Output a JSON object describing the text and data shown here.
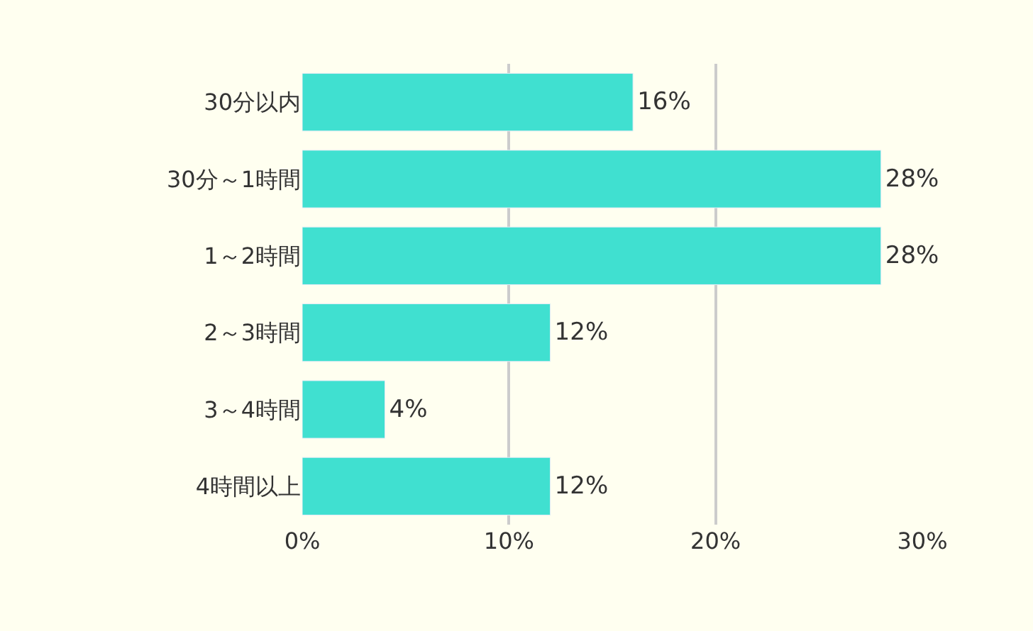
{
  "chart_data": {
    "type": "bar",
    "orientation": "horizontal",
    "categories": [
      "30分以内",
      "30分～1時間",
      "1～2時間",
      "2～3時間",
      "3～4時間",
      "4時間以上"
    ],
    "values": [
      16,
      28,
      28,
      12,
      4,
      12
    ],
    "value_labels": [
      "16%",
      "28%",
      "28%",
      "12%",
      "4%",
      "12%"
    ],
    "color": "#40e0d0",
    "xlim": [
      0,
      30
    ],
    "xticks": [
      {
        "value": 0,
        "label": "0%"
      },
      {
        "value": 10,
        "label": "10%"
      },
      {
        "value": 20,
        "label": "20%"
      },
      {
        "value": 30,
        "label": "30%"
      }
    ],
    "grid": "x",
    "legend": false
  }
}
